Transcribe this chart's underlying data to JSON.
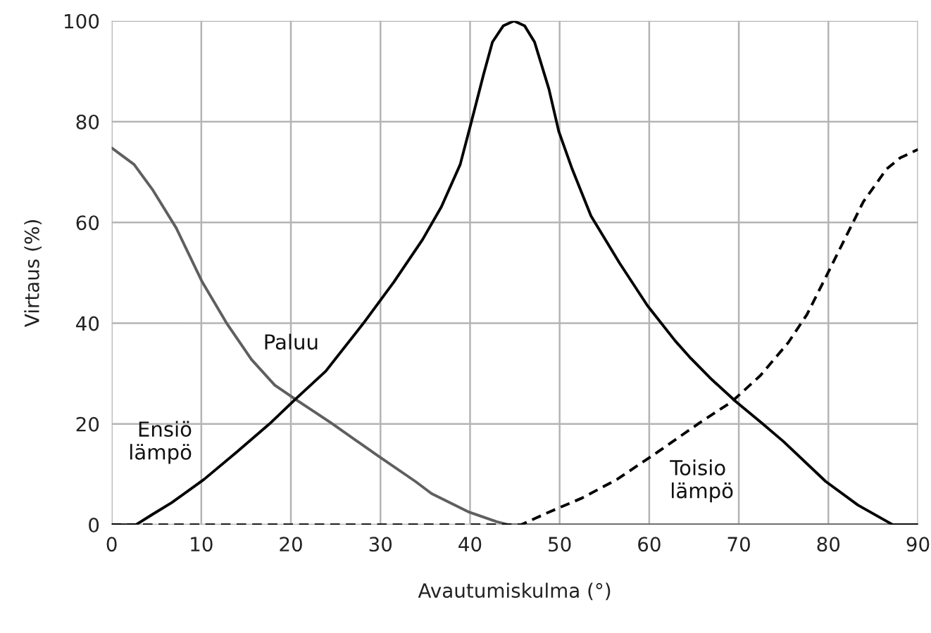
{
  "chart_data": {
    "type": "line",
    "xlabel": "Avautumiskulma (°)",
    "ylabel": "Virtaus (%)",
    "xlim": [
      0,
      90
    ],
    "xticks": [
      0,
      10,
      20,
      30,
      40,
      50,
      60,
      70,
      80,
      90
    ],
    "ylim": [
      0,
      100
    ],
    "yticks": [
      0,
      20,
      40,
      60,
      80,
      100
    ],
    "grid": true,
    "series": [
      {
        "name": "Paluu",
        "color": "#5f5f5f",
        "line_style": "solid",
        "x": [
          0,
          2.5,
          4.6,
          7.2,
          10.1,
          12.9,
          15.6,
          18.2,
          20.5,
          24.5,
          29.7,
          33.9,
          35.7,
          39.9,
          43,
          44.3,
          90
        ],
        "values": [
          74.8,
          71.5,
          66.4,
          58.9,
          48.2,
          39.8,
          32.8,
          27.7,
          24.9,
          20.2,
          13.7,
          8.6,
          6.2,
          2.5,
          0.6,
          0,
          0
        ]
      },
      {
        "name": "Ensiö\nlämpö",
        "color": "#000000",
        "line_style": "solid",
        "x": [
          0,
          2.7,
          4.5,
          6.7,
          10.3,
          14,
          17.6,
          20.5,
          23.9,
          28.1,
          31.5,
          34.7,
          36.8,
          38.9,
          40.2,
          41.5,
          42.5,
          43.7,
          44.9,
          46.1,
          47.2,
          48.8,
          49.9,
          51.4,
          53.5,
          56.7,
          59.8,
          62.9,
          64.5,
          67,
          69.7,
          72.5,
          75,
          79.7,
          83.3,
          87.2,
          90
        ],
        "values": [
          0,
          0,
          2,
          4.4,
          9,
          14.5,
          20,
          24.9,
          30.5,
          40,
          48.2,
          56.6,
          63.1,
          71.5,
          80.3,
          89.3,
          95.8,
          99,
          100,
          99,
          95.8,
          86.5,
          78.1,
          70.6,
          61.3,
          51.9,
          43.5,
          36.5,
          33.3,
          28.8,
          24.4,
          20.3,
          16.5,
          8.6,
          3.9,
          0,
          0
        ]
      },
      {
        "name": "Toisio\nlämpö",
        "color": "#000000",
        "line_style": "dashed",
        "x": [
          0,
          45.7,
          48.8,
          52.5,
          56.4,
          61,
          65.6,
          69.2,
          72.4,
          75.5,
          77.6,
          79.7,
          81.8,
          83.9,
          86.5,
          88,
          90
        ],
        "values": [
          0,
          0,
          2.5,
          5.3,
          9,
          14.5,
          20.2,
          24.4,
          29.6,
          36.1,
          41.7,
          49.1,
          56.6,
          64.1,
          70.6,
          72.8,
          74.5
        ]
      }
    ]
  }
}
